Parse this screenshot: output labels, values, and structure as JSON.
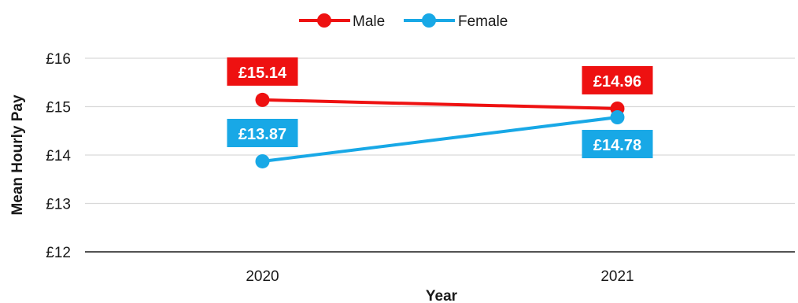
{
  "chart_data": {
    "type": "line",
    "categories": [
      "2020",
      "2021"
    ],
    "series": [
      {
        "name": "Male",
        "color": "#ee1111",
        "values": [
          15.14,
          14.96
        ],
        "labels": [
          "£15.14",
          "£14.96"
        ],
        "label_position": [
          "above",
          "above"
        ]
      },
      {
        "name": "Female",
        "color": "#18a8e6",
        "values": [
          13.87,
          14.78
        ],
        "labels": [
          "£13.87",
          "£14.78"
        ],
        "label_position": [
          "above",
          "below"
        ]
      }
    ],
    "title": "",
    "xlabel": "Year",
    "ylabel": "Mean Hourly Pay",
    "ylim": [
      12,
      16
    ],
    "y_ticks": [
      12,
      13,
      14,
      15,
      16
    ],
    "y_tick_labels": [
      "£12",
      "£13",
      "£14",
      "£15",
      "£16"
    ],
    "grid": true,
    "legend_position": "top-center"
  }
}
